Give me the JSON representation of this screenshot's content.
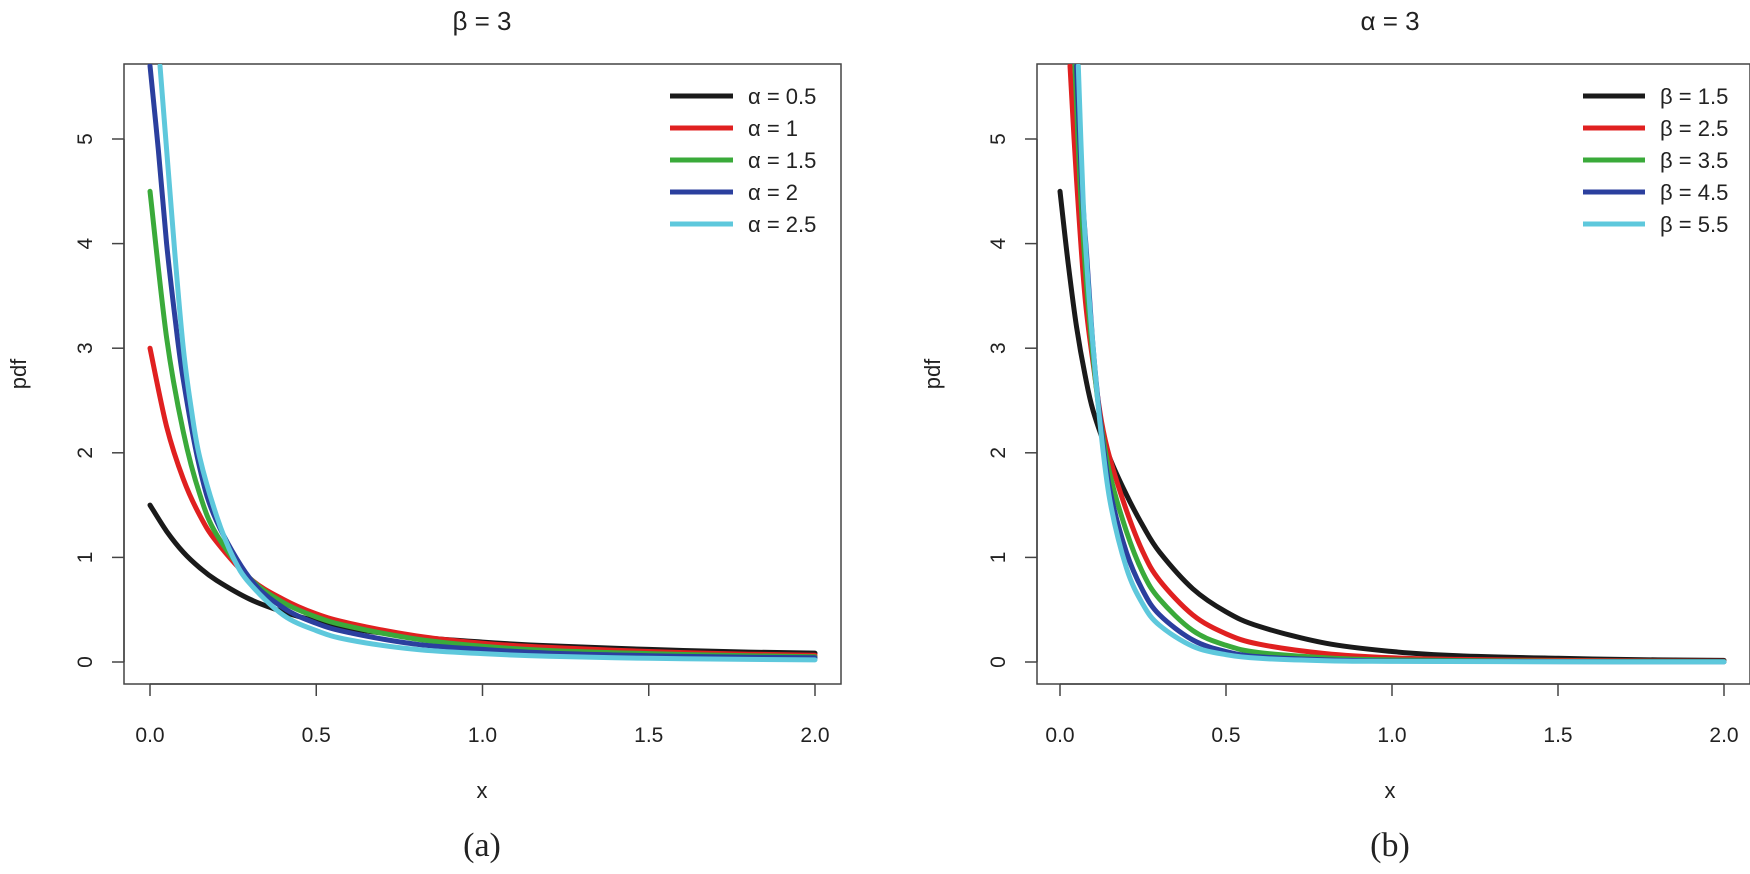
{
  "chart_data": [
    {
      "type": "line",
      "panel_label": "(a)",
      "title": "β = 3",
      "xlabel": "x",
      "ylabel": "pdf",
      "xlim": [
        0,
        2
      ],
      "ylim": [
        0,
        5.7
      ],
      "xticks": [
        "0.0",
        "0.5",
        "1.0",
        "1.5",
        "2.0"
      ],
      "yticks": [
        "0",
        "1",
        "2",
        "3",
        "4",
        "5"
      ],
      "legend_position": "top-right",
      "series": [
        {
          "name": "α = 0.5",
          "color": "#1a1a1a",
          "x": [
            0,
            0.05,
            0.1,
            0.15,
            0.2,
            0.3,
            0.4,
            0.5,
            0.6,
            0.8,
            1.0,
            1.2,
            1.5,
            1.8,
            2.0
          ],
          "y": [
            1.5,
            1.25,
            1.05,
            0.9,
            0.78,
            0.6,
            0.48,
            0.39,
            0.32,
            0.24,
            0.19,
            0.155,
            0.12,
            0.095,
            0.085
          ]
        },
        {
          "name": "α = 1",
          "color": "#e02020",
          "x": [
            0,
            0.05,
            0.1,
            0.15,
            0.2,
            0.3,
            0.4,
            0.5,
            0.6,
            0.8,
            1.0,
            1.2,
            1.5,
            1.8,
            2.0
          ],
          "y": [
            3.0,
            2.25,
            1.75,
            1.4,
            1.15,
            0.8,
            0.6,
            0.46,
            0.37,
            0.25,
            0.18,
            0.14,
            0.1,
            0.075,
            0.065
          ]
        },
        {
          "name": "α = 1.5",
          "color": "#3aaa3a",
          "x": [
            0,
            0.05,
            0.1,
            0.15,
            0.2,
            0.3,
            0.4,
            0.5,
            0.6,
            0.8,
            1.0,
            1.2,
            1.5,
            1.8,
            2.0
          ],
          "y": [
            4.5,
            3.1,
            2.2,
            1.6,
            1.22,
            0.8,
            0.57,
            0.43,
            0.34,
            0.22,
            0.15,
            0.11,
            0.08,
            0.06,
            0.05
          ]
        },
        {
          "name": "α = 2",
          "color": "#2b3f9e",
          "x": [
            0,
            0.025,
            0.05,
            0.075,
            0.1,
            0.15,
            0.2,
            0.3,
            0.4,
            0.5,
            0.6,
            0.8,
            1.0,
            1.2,
            1.5,
            1.8,
            2.0
          ],
          "y": [
            5.7,
            4.9,
            4.0,
            3.3,
            2.7,
            1.85,
            1.35,
            0.8,
            0.52,
            0.37,
            0.28,
            0.17,
            0.12,
            0.085,
            0.06,
            0.045,
            0.04
          ]
        },
        {
          "name": "α = 2.5",
          "color": "#5ec8dc",
          "x": [
            0.03,
            0.05,
            0.075,
            0.1,
            0.125,
            0.15,
            0.2,
            0.25,
            0.3,
            0.4,
            0.5,
            0.6,
            0.8,
            1.0,
            1.2,
            1.5,
            1.8,
            2.0
          ],
          "y": [
            5.7,
            4.9,
            3.9,
            3.0,
            2.4,
            1.95,
            1.4,
            1.0,
            0.75,
            0.45,
            0.3,
            0.21,
            0.12,
            0.08,
            0.055,
            0.035,
            0.025,
            0.02
          ]
        }
      ]
    },
    {
      "type": "line",
      "panel_label": "(b)",
      "title": "α = 3",
      "xlabel": "x",
      "ylabel": "pdf",
      "xlim": [
        0,
        2
      ],
      "ylim": [
        0,
        5.7
      ],
      "xticks": [
        "0.0",
        "0.5",
        "1.0",
        "1.5",
        "2.0"
      ],
      "yticks": [
        "0",
        "1",
        "2",
        "3",
        "4",
        "5"
      ],
      "legend_position": "top-right",
      "series": [
        {
          "name": "β = 1.5",
          "color": "#1a1a1a",
          "x": [
            0,
            0.025,
            0.05,
            0.075,
            0.1,
            0.15,
            0.2,
            0.25,
            0.3,
            0.4,
            0.5,
            0.6,
            0.8,
            1.0,
            1.2,
            1.5,
            1.8,
            2.0
          ],
          "y": [
            4.5,
            3.8,
            3.2,
            2.75,
            2.4,
            1.95,
            1.6,
            1.3,
            1.05,
            0.7,
            0.48,
            0.34,
            0.18,
            0.1,
            0.06,
            0.035,
            0.02,
            0.015
          ]
        },
        {
          "name": "β = 2.5",
          "color": "#e02020",
          "x": [
            0.03,
            0.05,
            0.075,
            0.1,
            0.125,
            0.15,
            0.2,
            0.25,
            0.3,
            0.4,
            0.5,
            0.6,
            0.8,
            1.0,
            1.2,
            1.5,
            1.8,
            2.0
          ],
          "y": [
            5.7,
            4.6,
            3.5,
            2.85,
            2.3,
            1.95,
            1.45,
            1.05,
            0.78,
            0.45,
            0.27,
            0.17,
            0.08,
            0.04,
            0.025,
            0.015,
            0.01,
            0.008
          ]
        },
        {
          "name": "β = 3.5",
          "color": "#3aaa3a",
          "x": [
            0.045,
            0.06,
            0.08,
            0.1,
            0.12,
            0.15,
            0.2,
            0.25,
            0.3,
            0.4,
            0.5,
            0.6,
            0.8,
            1.0,
            1.5,
            2.0
          ],
          "y": [
            5.7,
            4.6,
            3.6,
            2.9,
            2.35,
            1.8,
            1.25,
            0.85,
            0.6,
            0.3,
            0.16,
            0.09,
            0.04,
            0.02,
            0.008,
            0.005
          ]
        },
        {
          "name": "β = 4.5",
          "color": "#2b3f9e",
          "x": [
            0.05,
            0.065,
            0.08,
            0.1,
            0.12,
            0.15,
            0.2,
            0.25,
            0.3,
            0.4,
            0.5,
            0.6,
            0.8,
            1.0,
            1.5,
            2.0
          ],
          "y": [
            5.7,
            4.6,
            3.9,
            3.0,
            2.35,
            1.65,
            1.05,
            0.68,
            0.45,
            0.21,
            0.1,
            0.05,
            0.02,
            0.01,
            0.004,
            0.002
          ]
        },
        {
          "name": "β = 5.5",
          "color": "#5ec8dc",
          "x": [
            0.055,
            0.07,
            0.085,
            0.1,
            0.12,
            0.15,
            0.2,
            0.25,
            0.3,
            0.4,
            0.5,
            0.6,
            0.8,
            1.0,
            1.5,
            2.0
          ],
          "y": [
            5.7,
            4.4,
            3.6,
            3.0,
            2.3,
            1.55,
            0.9,
            0.55,
            0.35,
            0.15,
            0.07,
            0.035,
            0.012,
            0.006,
            0.002,
            0.001
          ]
        }
      ]
    }
  ]
}
